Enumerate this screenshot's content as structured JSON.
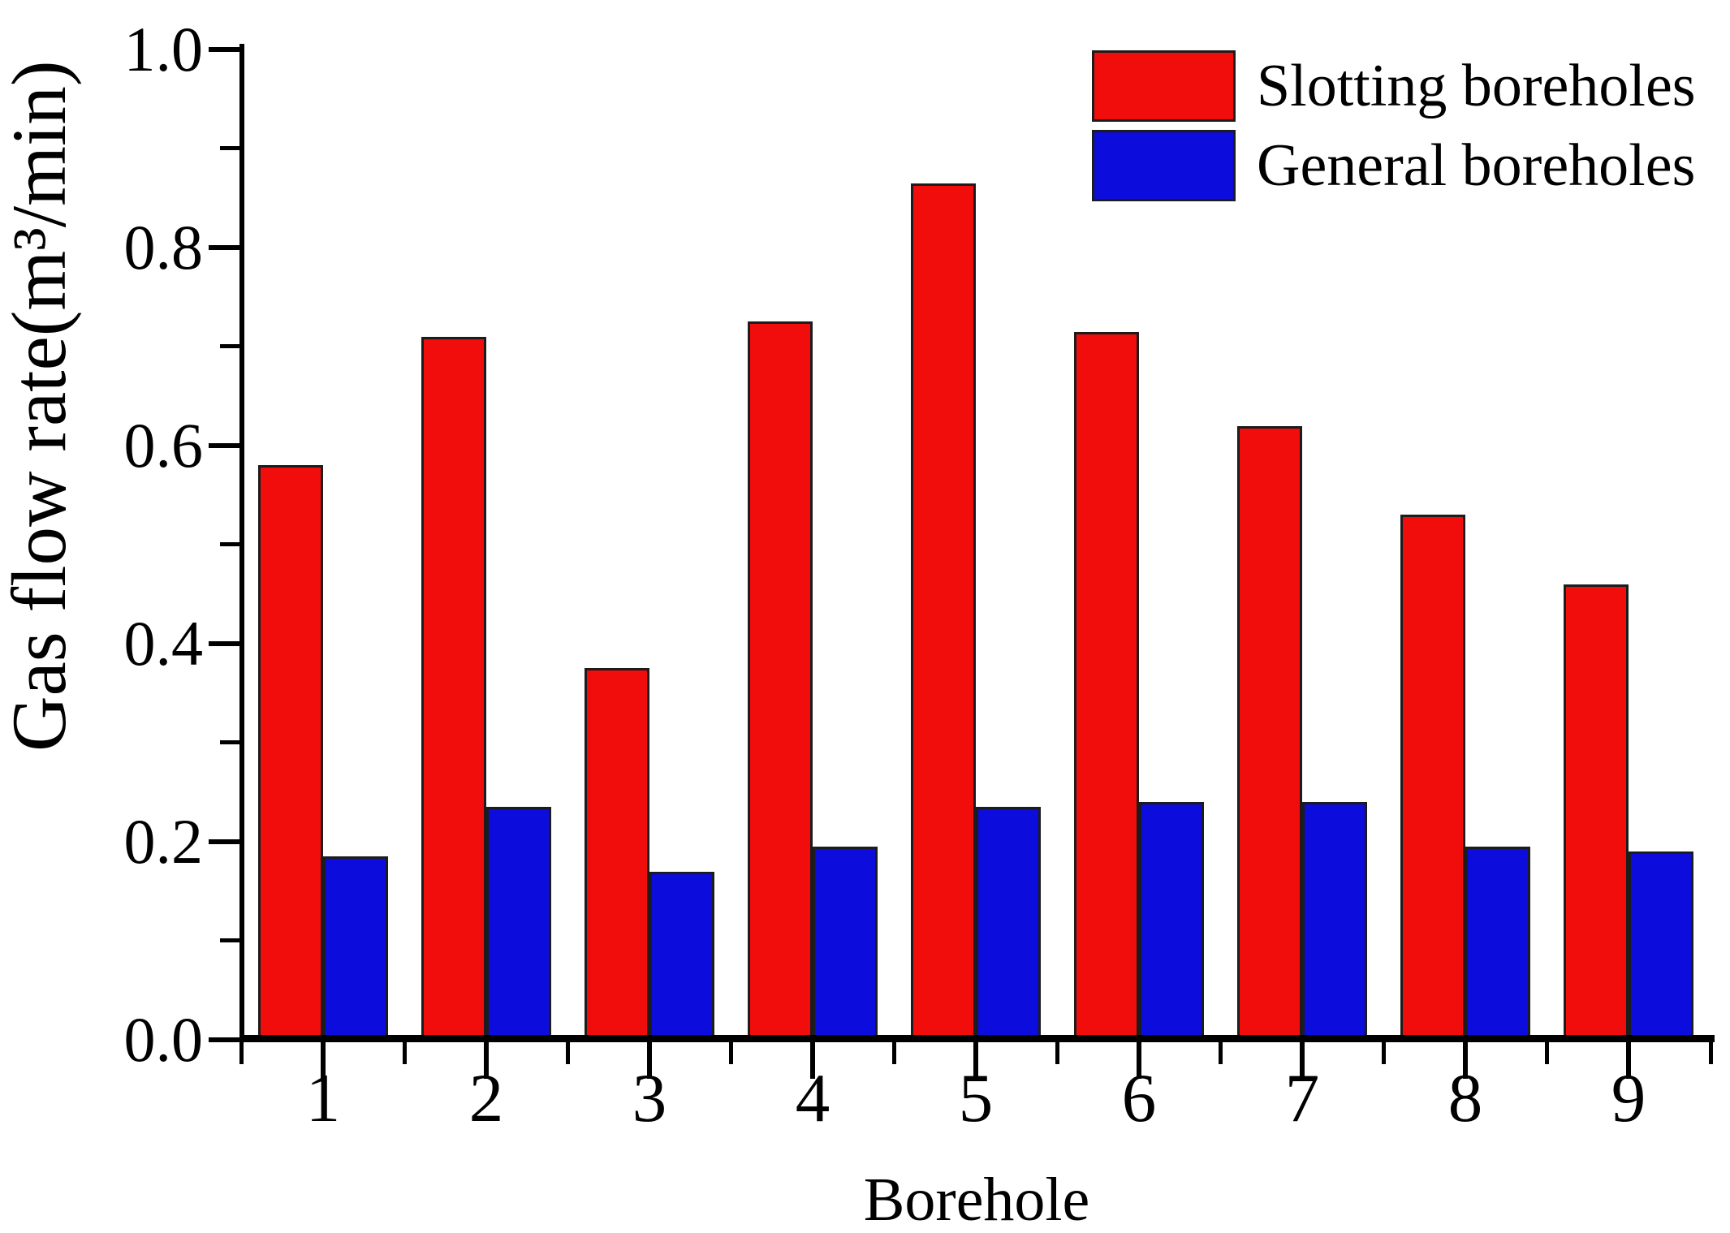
{
  "chart_data": {
    "type": "bar",
    "title": "",
    "categories": [
      "1",
      "2",
      "3",
      "4",
      "5",
      "6",
      "7",
      "8",
      "9"
    ],
    "series": [
      {
        "name": "Slotting boreholes",
        "color": "#f20d0d",
        "values": [
          0.58,
          0.71,
          0.375,
          0.725,
          0.865,
          0.715,
          0.62,
          0.53,
          0.46
        ]
      },
      {
        "name": "General boreholes",
        "color": "#0c0cdc",
        "values": [
          0.185,
          0.235,
          0.17,
          0.195,
          0.235,
          0.24,
          0.24,
          0.195,
          0.19
        ]
      }
    ],
    "xlabel": "Borehole",
    "ylabel": "Gas flow rate(m³/min)",
    "ylim": [
      0.0,
      1.0
    ],
    "y_major_step": 0.2,
    "y_minor_step": 0.1,
    "y_tick_labels": [
      "0.0",
      "0.2",
      "0.4",
      "0.6",
      "0.8",
      "1.0"
    ],
    "grid": false,
    "legend_position": "top-right"
  }
}
